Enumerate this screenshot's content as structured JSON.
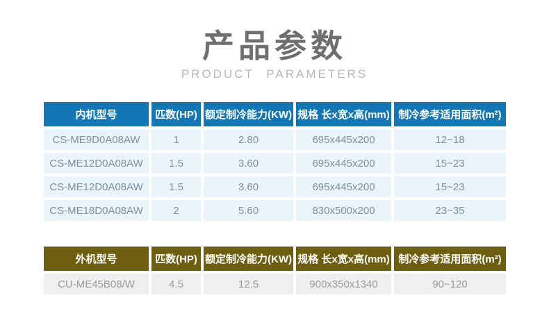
{
  "header": {
    "title": "产品参数",
    "subtitle": "PRODUCT PARAMETERS",
    "title_color": "#6f6f6f",
    "subtitle_color": "#bab7b3"
  },
  "tables": [
    {
      "id": "indoor-unit-table",
      "theme": {
        "header_bg": "#1477b5",
        "header_text": "#ffffff",
        "row_bg": "#e9f4fb",
        "row_text": "#7f8f9b"
      },
      "columns": [
        "内机型号",
        "匹数(HP)",
        "额定制冷能力(KW)",
        "规格 长x宽x高(mm)",
        "制冷参考适用面积(m²)"
      ],
      "rows": [
        [
          "CS-ME9D0A08AW",
          "1",
          "2.80",
          "695x445x200",
          "12~18"
        ],
        [
          "CS-ME12D0A08AW",
          "1.5",
          "3.60",
          "695x445x200",
          "15~23"
        ],
        [
          "CS-ME12D0A08AW",
          "1.5",
          "3.60",
          "695x445x200",
          "15~23"
        ],
        [
          "CS-ME18D0A08AW",
          "2",
          "5.60",
          "830x500x200",
          "23~35"
        ]
      ]
    },
    {
      "id": "outdoor-unit-table",
      "theme": {
        "header_bg": "#6e5f10",
        "header_text": "#ffffff",
        "row_bg": "#efefef",
        "row_text": "#9b9b96"
      },
      "columns": [
        "外机型号",
        "匹数(HP)",
        "额定制冷能力(KW)",
        "规格 长x宽x高(mm)",
        "制冷参考适用面积(m²)"
      ],
      "rows": [
        [
          "CU-ME45B08/W",
          "4.5",
          "12.5",
          "900x350x1340",
          "90~120"
        ]
      ]
    }
  ]
}
